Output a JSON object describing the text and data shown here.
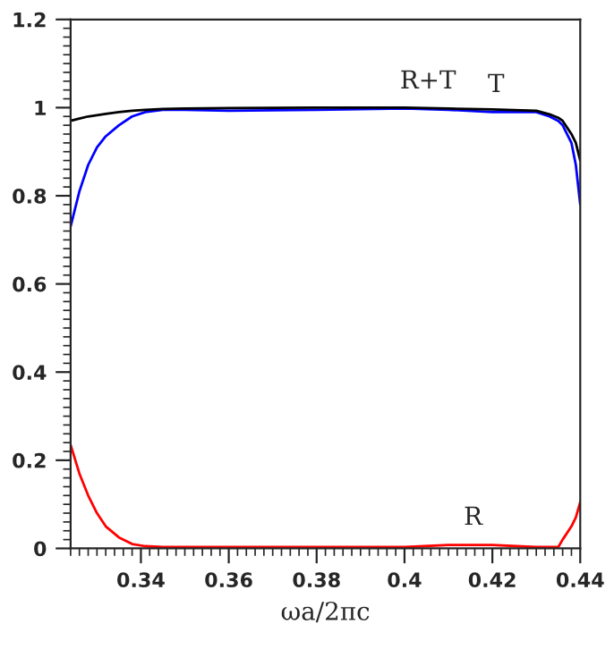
{
  "chart_data": {
    "type": "line",
    "xlabel": "ωa/2πc",
    "x": [
      0.324,
      0.326,
      0.328,
      0.33,
      0.332,
      0.335,
      0.338,
      0.341,
      0.345,
      0.35,
      0.36,
      0.38,
      0.4,
      0.41,
      0.42,
      0.43,
      0.433,
      0.435,
      0.436,
      0.438,
      0.439,
      0.44
    ],
    "series": [
      {
        "color": "#0000ff",
        "values": [
          0.73,
          0.81,
          0.87,
          0.91,
          0.935,
          0.96,
          0.98,
          0.99,
          0.995,
          0.995,
          0.993,
          0.995,
          0.998,
          0.995,
          0.99,
          0.99,
          0.98,
          0.97,
          0.96,
          0.92,
          0.87,
          0.78
        ]
      },
      {
        "color": "#000000",
        "values": [
          0.97,
          0.975,
          0.98,
          0.983,
          0.986,
          0.99,
          0.993,
          0.995,
          0.997,
          0.998,
          0.999,
          1.0,
          1.0,
          0.998,
          0.996,
          0.993,
          0.985,
          0.977,
          0.97,
          0.94,
          0.92,
          0.88
        ]
      },
      {
        "color": "#ff0000",
        "values": [
          0.235,
          0.17,
          0.12,
          0.08,
          0.05,
          0.025,
          0.01,
          0.005,
          0.003,
          0.003,
          0.003,
          0.003,
          0.003,
          0.008,
          0.008,
          0.003,
          0.003,
          0.003,
          0.02,
          0.05,
          0.07,
          0.105
        ]
      }
    ],
    "annotations": [
      {
        "text": "R+T",
        "x": 0.414,
        "y": 0.998
      },
      {
        "text": "T",
        "x": 0.425,
        "y": 0.99
      },
      {
        "text": "R",
        "x": 0.42,
        "y": 0.008
      }
    ],
    "xlim": [
      0.324,
      0.44
    ],
    "xticks": [
      0.34,
      0.36,
      0.38,
      0.4,
      0.42,
      0.44
    ],
    "ylim": [
      0,
      1.2
    ],
    "yticks": [
      0,
      0.2,
      0.4,
      0.6,
      0.8,
      1,
      1.2
    ],
    "grid": false,
    "legend": false
  }
}
